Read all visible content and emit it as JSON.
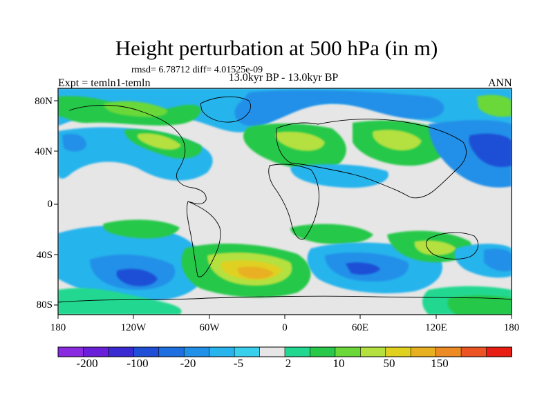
{
  "title": "Height perturbation at 500 hPa (in m)",
  "stats": "rmsd= 6.78712 diff= 4.01525e-09",
  "period": "13.0kyr BP - 13.0kyr BP",
  "experiment": "Expt = temln1-temln",
  "season": "ANN",
  "lat_labels": [
    "80N",
    "40N",
    "0",
    "40S",
    "80S"
  ],
  "lon_labels": [
    "180",
    "120W",
    "60W",
    "0",
    "60E",
    "120E",
    "180"
  ],
  "colorbar": {
    "colors": [
      "#8a2be2",
      "#6a1fd8",
      "#3a2ad2",
      "#1f4fd6",
      "#1f6fe0",
      "#2090e8",
      "#28b4ec",
      "#38d0ec",
      "#e6e6e6",
      "#22d890",
      "#28c84a",
      "#6ad838",
      "#b4e040",
      "#e0d020",
      "#e8b020",
      "#ec8a24",
      "#ec5424",
      "#e81e14"
    ],
    "labels": [
      "-200",
      "-100",
      "-20",
      "-5",
      "2",
      "10",
      "50",
      "150"
    ]
  }
}
